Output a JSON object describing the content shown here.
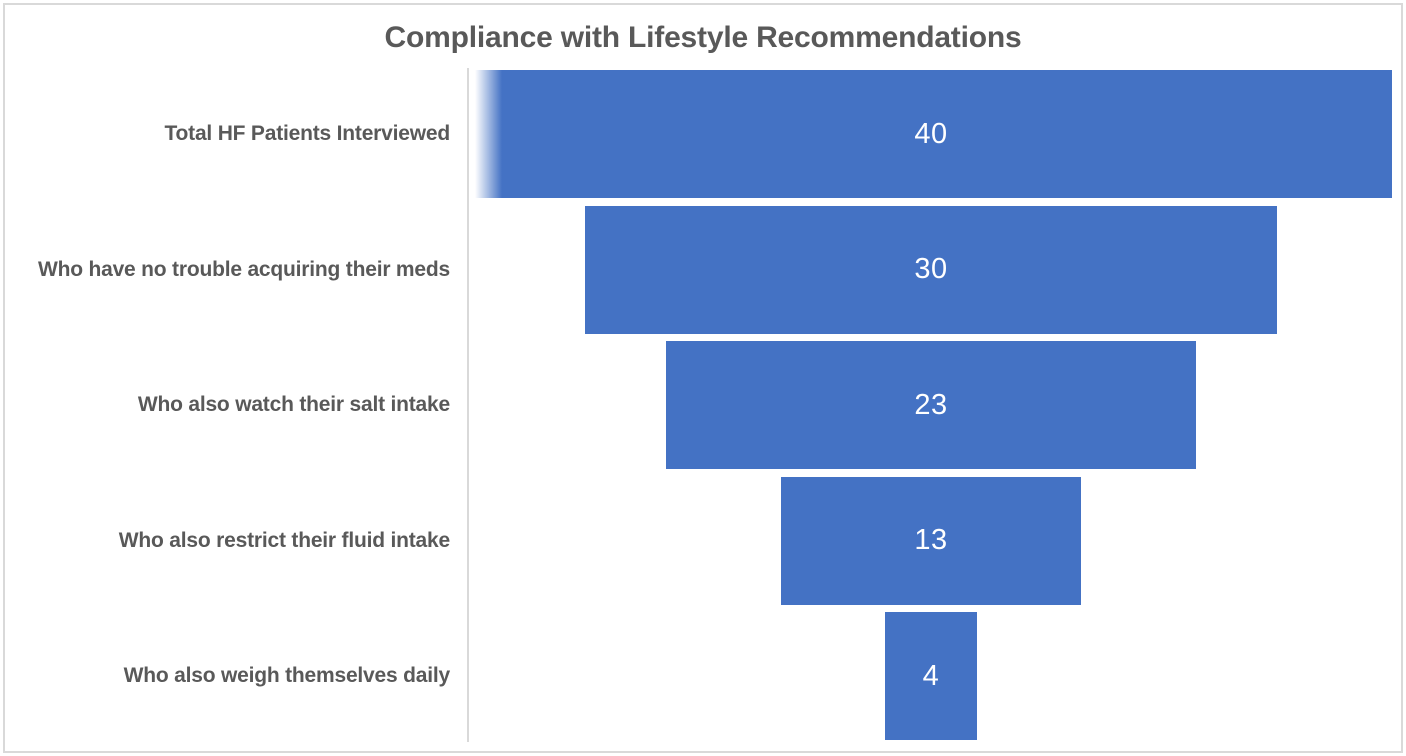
{
  "chart_data": {
    "type": "funnel",
    "title": "Compliance with Lifestyle Recommendations",
    "categories": [
      "Total HF Patients Interviewed",
      "Who have no trouble acquiring their meds",
      "Who also watch their salt intake",
      "Who also restrict their fluid intake",
      "Who also weigh themselves daily"
    ],
    "values": [
      40,
      30,
      23,
      13,
      4
    ],
    "xlim": [
      0,
      40
    ],
    "grid": false,
    "legend_position": "none",
    "bar_color": "#4472C4",
    "value_label_color": "#FFFFFF",
    "category_label_color": "#595959",
    "title_color": "#595959",
    "axis_line_color": "#D9D9D9",
    "frame_border_color": "#D9D9D9",
    "background_color": "#FFFFFF"
  }
}
